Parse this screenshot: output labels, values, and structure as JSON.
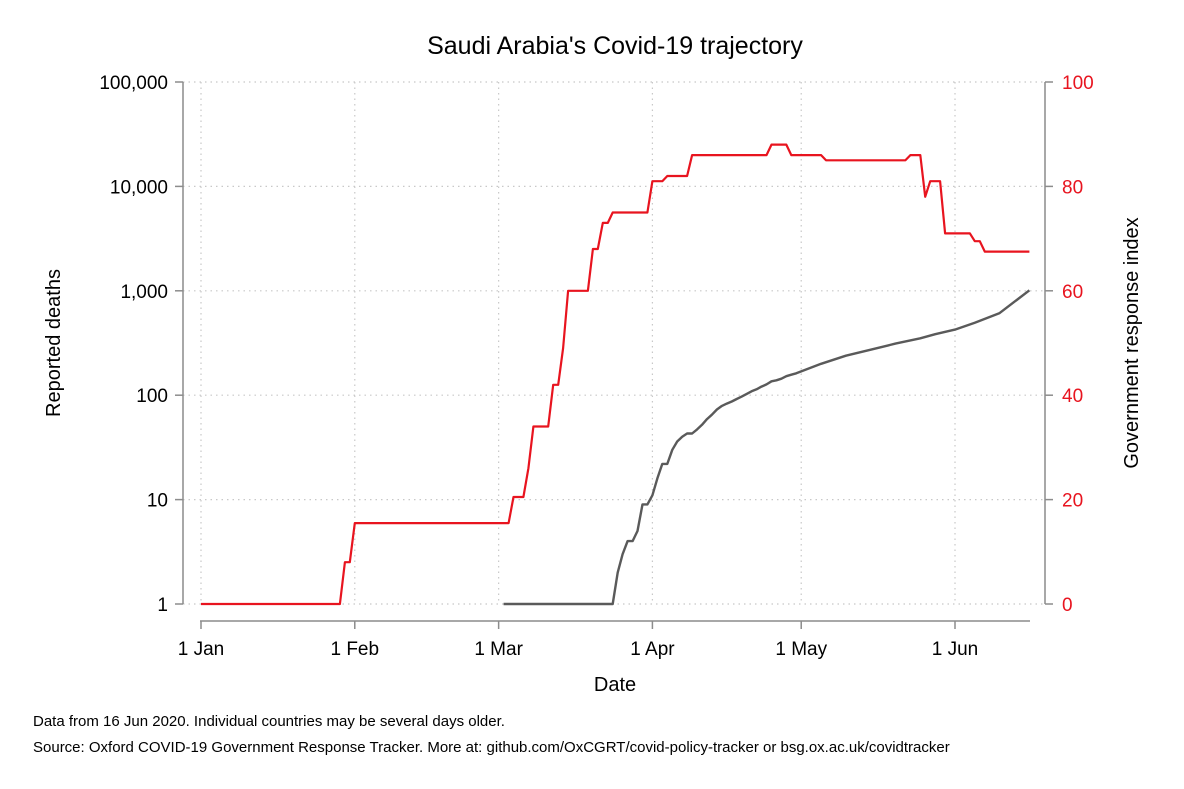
{
  "chart_data": {
    "type": "line",
    "title": "Saudi Arabia's Covid-19 trajectory",
    "xlabel": "Date",
    "ylabel": "Reported deaths",
    "ylabel_right": "Government response index",
    "x_ticks": [
      "1 Jan",
      "1 Feb",
      "1 Mar",
      "1 Apr",
      "1 May",
      "1 Jun"
    ],
    "x_tick_dates": [
      "2020-01-01",
      "2020-02-01",
      "2020-03-01",
      "2020-04-01",
      "2020-05-01",
      "2020-06-01"
    ],
    "y_left_ticks": [
      "1",
      "10",
      "100",
      "1,000",
      "10,000",
      "100,000"
    ],
    "y_left_tick_values": [
      1,
      10,
      100,
      1000,
      10000,
      100000
    ],
    "y_left_scale": "log",
    "y_left_range": [
      1,
      100000
    ],
    "y_right_ticks": [
      "0",
      "20",
      "40",
      "60",
      "80",
      "100"
    ],
    "y_right_tick_values": [
      0,
      20,
      40,
      60,
      80,
      100
    ],
    "y_right_range": [
      0,
      100
    ],
    "x_range": [
      "2020-01-01",
      "2020-06-16"
    ],
    "grid": true,
    "series": [
      {
        "name": "Reported deaths",
        "axis": "left",
        "color": "#5a5a5a",
        "points": [
          [
            "2020-03-02",
            1
          ],
          [
            "2020-03-24",
            1
          ],
          [
            "2020-03-25",
            2
          ],
          [
            "2020-03-26",
            3
          ],
          [
            "2020-03-27",
            4
          ],
          [
            "2020-03-28",
            4
          ],
          [
            "2020-03-29",
            5
          ],
          [
            "2020-03-30",
            9
          ],
          [
            "2020-03-31",
            9
          ],
          [
            "2020-04-01",
            11
          ],
          [
            "2020-04-02",
            16
          ],
          [
            "2020-04-03",
            22
          ],
          [
            "2020-04-04",
            22
          ],
          [
            "2020-04-05",
            30
          ],
          [
            "2020-04-06",
            36
          ],
          [
            "2020-04-07",
            40
          ],
          [
            "2020-04-08",
            43
          ],
          [
            "2020-04-09",
            43
          ],
          [
            "2020-04-10",
            47
          ],
          [
            "2020-04-11",
            52
          ],
          [
            "2020-04-12",
            59
          ],
          [
            "2020-04-13",
            65
          ],
          [
            "2020-04-14",
            73
          ],
          [
            "2020-04-15",
            79
          ],
          [
            "2020-04-16",
            83
          ],
          [
            "2020-04-17",
            87
          ],
          [
            "2020-04-18",
            92
          ],
          [
            "2020-04-19",
            97
          ],
          [
            "2020-04-20",
            103
          ],
          [
            "2020-04-21",
            109
          ],
          [
            "2020-04-22",
            114
          ],
          [
            "2020-04-23",
            121
          ],
          [
            "2020-04-24",
            127
          ],
          [
            "2020-04-25",
            136
          ],
          [
            "2020-04-26",
            139
          ],
          [
            "2020-04-27",
            144
          ],
          [
            "2020-04-28",
            152
          ],
          [
            "2020-04-29",
            157
          ],
          [
            "2020-04-30",
            162
          ],
          [
            "2020-05-05",
            200
          ],
          [
            "2020-05-10",
            239
          ],
          [
            "2020-05-15",
            273
          ],
          [
            "2020-05-20",
            312
          ],
          [
            "2020-05-25",
            351
          ],
          [
            "2020-05-28",
            384
          ],
          [
            "2020-06-01",
            425
          ],
          [
            "2020-06-05",
            495
          ],
          [
            "2020-06-10",
            611
          ],
          [
            "2020-06-16",
            1011
          ]
        ]
      },
      {
        "name": "Government response index",
        "axis": "right",
        "color": "#e8141f",
        "points": [
          [
            "2020-01-01",
            0
          ],
          [
            "2020-01-29",
            0
          ],
          [
            "2020-01-30",
            8
          ],
          [
            "2020-01-31",
            8
          ],
          [
            "2020-02-01",
            15.5
          ],
          [
            "2020-03-03",
            15.5
          ],
          [
            "2020-03-04",
            20.5
          ],
          [
            "2020-03-05",
            20.5
          ],
          [
            "2020-03-06",
            20.5
          ],
          [
            "2020-03-07",
            26
          ],
          [
            "2020-03-08",
            34
          ],
          [
            "2020-03-09",
            34
          ],
          [
            "2020-03-10",
            34
          ],
          [
            "2020-03-11",
            34
          ],
          [
            "2020-03-12",
            42
          ],
          [
            "2020-03-13",
            42
          ],
          [
            "2020-03-14",
            49
          ],
          [
            "2020-03-15",
            60
          ],
          [
            "2020-03-16",
            60
          ],
          [
            "2020-03-17",
            60
          ],
          [
            "2020-03-18",
            60
          ],
          [
            "2020-03-19",
            60
          ],
          [
            "2020-03-20",
            68
          ],
          [
            "2020-03-21",
            68
          ],
          [
            "2020-03-22",
            73
          ],
          [
            "2020-03-23",
            73
          ],
          [
            "2020-03-24",
            75
          ],
          [
            "2020-03-25",
            75
          ],
          [
            "2020-03-31",
            75
          ],
          [
            "2020-04-01",
            81
          ],
          [
            "2020-04-02",
            81
          ],
          [
            "2020-04-03",
            81
          ],
          [
            "2020-04-04",
            82
          ],
          [
            "2020-04-05",
            82
          ],
          [
            "2020-04-08",
            82
          ],
          [
            "2020-04-09",
            86
          ],
          [
            "2020-04-24",
            86
          ],
          [
            "2020-04-25",
            88
          ],
          [
            "2020-04-28",
            88
          ],
          [
            "2020-04-29",
            86
          ],
          [
            "2020-05-05",
            86
          ],
          [
            "2020-05-06",
            85
          ],
          [
            "2020-05-22",
            85
          ],
          [
            "2020-05-23",
            86
          ],
          [
            "2020-05-25",
            86
          ],
          [
            "2020-05-26",
            78
          ],
          [
            "2020-05-27",
            81
          ],
          [
            "2020-05-29",
            81
          ],
          [
            "2020-05-30",
            71
          ],
          [
            "2020-06-04",
            71
          ],
          [
            "2020-06-05",
            69.5
          ],
          [
            "2020-06-06",
            69.5
          ],
          [
            "2020-06-07",
            67.5
          ],
          [
            "2020-06-16",
            67.5
          ]
        ]
      }
    ]
  },
  "notes": {
    "line1": "Data from 16 Jun 2020. Individual countries may be several days older.",
    "line2": "Source: Oxford COVID-19 Government Response Tracker. More at: github.com/OxCGRT/covid-policy-tracker or bsg.ox.ac.uk/covidtracker"
  }
}
